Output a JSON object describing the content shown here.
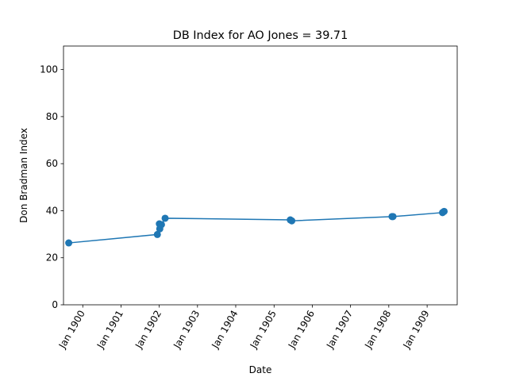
{
  "chart_data": {
    "type": "line",
    "title": "DB Index for AO Jones = 39.71",
    "xlabel": "Date",
    "ylabel": "Don Bradman Index",
    "ylim": [
      0,
      110
    ],
    "xlim": [
      "1899-07-01",
      "1909-10-15"
    ],
    "yticks": [
      0,
      20,
      40,
      60,
      80,
      100
    ],
    "xticks": [
      {
        "date": "1900-01-01",
        "label": "Jan 1900"
      },
      {
        "date": "1901-01-01",
        "label": "Jan 1901"
      },
      {
        "date": "1902-01-01",
        "label": "Jan 1902"
      },
      {
        "date": "1903-01-01",
        "label": "Jan 1903"
      },
      {
        "date": "1904-01-01",
        "label": "Jan 1904"
      },
      {
        "date": "1905-01-01",
        "label": "Jan 1905"
      },
      {
        "date": "1906-01-01",
        "label": "Jan 1906"
      },
      {
        "date": "1907-01-01",
        "label": "Jan 1907"
      },
      {
        "date": "1908-01-01",
        "label": "Jan 1908"
      },
      {
        "date": "1909-01-01",
        "label": "Jan 1909"
      }
    ],
    "grid": false,
    "color": "#1f77b4",
    "series": [
      {
        "points": [
          {
            "x": "1899-08-20",
            "y": 26.3
          },
          {
            "x": "1901-12-14",
            "y": 29.9
          },
          {
            "x": "1902-01-02",
            "y": 34.4
          },
          {
            "x": "1902-01-06",
            "y": 32.3
          },
          {
            "x": "1902-01-22",
            "y": 34.1
          },
          {
            "x": "1902-02-26",
            "y": 36.8
          },
          {
            "x": "1905-06-05",
            "y": 36.1
          },
          {
            "x": "1905-06-19",
            "y": 35.7
          },
          {
            "x": "1908-02-01",
            "y": 37.5
          },
          {
            "x": "1908-02-10",
            "y": 37.5
          },
          {
            "x": "1909-05-28",
            "y": 39.2
          },
          {
            "x": "1909-06-12",
            "y": 39.7
          }
        ]
      }
    ]
  }
}
